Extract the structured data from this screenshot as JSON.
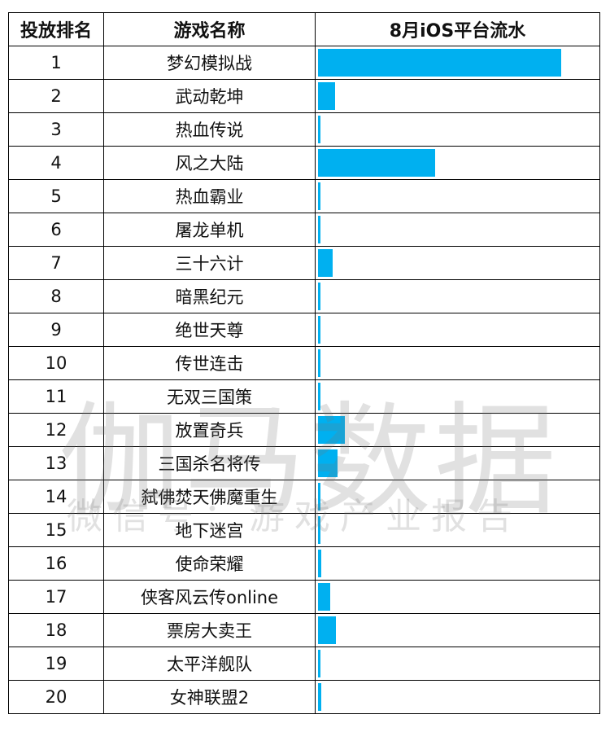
{
  "table": {
    "headers": [
      "投放排名",
      "游戏名称",
      "8月iOS平台流水"
    ]
  },
  "chart_data": {
    "type": "bar",
    "orientation": "horizontal",
    "title": "",
    "xlabel": "",
    "ylabel": "",
    "grid": false,
    "legend": "none",
    "bar_color": "#00b0f0",
    "value_note": "relative values (no numeric axis shown), scaled so 梦幻模拟战 = 100",
    "ranks": [
      "1",
      "2",
      "3",
      "4",
      "5",
      "6",
      "7",
      "8",
      "9",
      "10",
      "11",
      "12",
      "13",
      "14",
      "15",
      "16",
      "17",
      "18",
      "19",
      "20"
    ],
    "categories": [
      "梦幻模拟战",
      "武动乾坤",
      "热血传说",
      "风之大陆",
      "热血霸业",
      "屠龙单机",
      "三十六计",
      "暗黑纪元",
      "绝世天尊",
      "传世连击",
      "无双三国策",
      "放置奇兵",
      "三国杀名将传",
      "弑佛焚天佛魔重生",
      "地下迷宫",
      "使命荣耀",
      "侠客风云传online",
      "票房大卖王",
      "太平洋舰队",
      "女神联盟2"
    ],
    "values": [
      100,
      7,
      1,
      48,
      1,
      1,
      6,
      1,
      1,
      1,
      1,
      11,
      8,
      1,
      1,
      1.5,
      5,
      7.5,
      1,
      1.5
    ],
    "xlim": [
      0,
      100
    ]
  },
  "watermark": {
    "title": "伽马数据",
    "subtitle": "微信号：游戏产业报告"
  }
}
